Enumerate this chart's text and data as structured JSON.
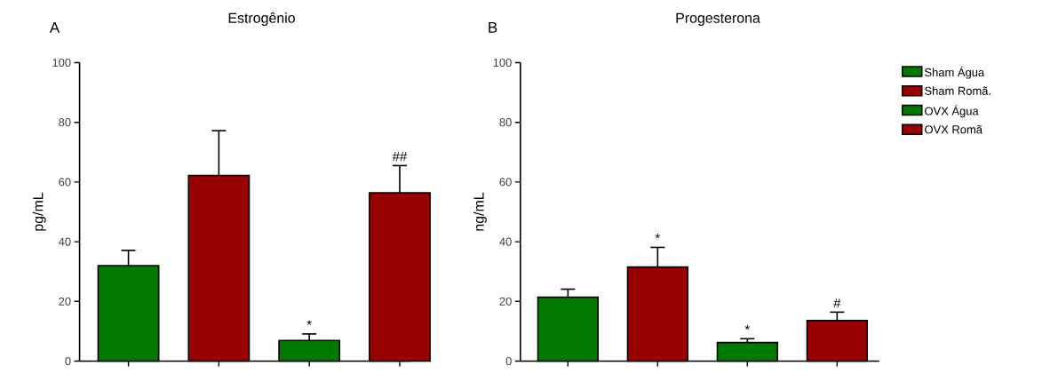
{
  "chart_data": [
    {
      "type": "bar",
      "title": "Estrogênio",
      "ylabel": "pg/mL",
      "annotations": [
        "A"
      ],
      "categories": [
        null,
        null,
        null,
        null
      ],
      "ylim": [
        0,
        100
      ],
      "yticks": [
        0,
        20,
        40,
        60,
        80,
        100
      ],
      "legend": false,
      "series": [
        {
          "color": "#007a00",
          "values": [
            32,
            null,
            null,
            null
          ],
          "errors": [
            5.1,
            null,
            null,
            null
          ]
        },
        {
          "color": "#990000",
          "values": [
            null,
            62.2,
            null,
            null
          ],
          "errors": [
            null,
            15,
            null,
            null
          ]
        },
        {
          "color": "#007a00",
          "values": [
            null,
            null,
            6.9,
            null
          ],
          "errors": [
            null,
            null,
            2.2,
            null
          ],
          "value_labels": [
            null,
            null,
            "*",
            null
          ]
        },
        {
          "color": "#990000",
          "values": [
            null,
            null,
            null,
            56.4
          ],
          "errors": [
            null,
            null,
            null,
            9.1
          ],
          "value_labels": [
            null,
            null,
            null,
            "##"
          ]
        }
      ]
    },
    {
      "type": "bar",
      "title": "Progesterona",
      "ylabel": "ng/mL",
      "annotations": [
        "B"
      ],
      "categories": [
        null,
        null,
        null,
        null
      ],
      "ylim": [
        0,
        100
      ],
      "yticks": [
        0,
        20,
        40,
        60,
        80,
        100
      ],
      "legend": "right",
      "series": [
        {
          "name": "Sham Água",
          "color": "#007a00",
          "values": [
            21.4,
            null,
            null,
            null
          ],
          "errors": [
            2.7,
            null,
            null,
            null
          ]
        },
        {
          "name": "Sham Romã.",
          "color": "#990000",
          "values": [
            null,
            31.5,
            null,
            null
          ],
          "errors": [
            null,
            6.6,
            null,
            null
          ],
          "value_labels": [
            null,
            "*",
            null,
            null
          ]
        },
        {
          "name": "OVX Água",
          "color": "#007a00",
          "values": [
            null,
            null,
            6.2,
            null
          ],
          "errors": [
            null,
            null,
            1.3,
            null
          ],
          "value_labels": [
            null,
            null,
            "*",
            null
          ]
        },
        {
          "name": "OVX Romã",
          "color": "#990000",
          "values": [
            null,
            null,
            null,
            13.6
          ],
          "errors": [
            null,
            null,
            null,
            2.8
          ],
          "value_labels": [
            null,
            null,
            null,
            "#"
          ]
        }
      ]
    }
  ]
}
